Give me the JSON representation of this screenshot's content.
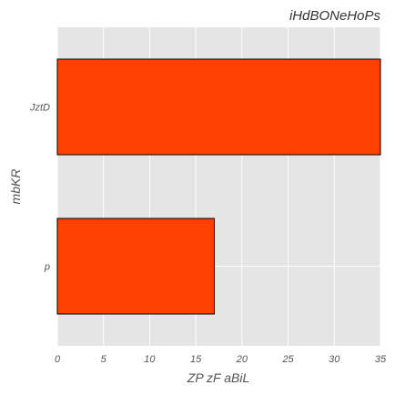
{
  "chart_data": {
    "type": "bar",
    "orientation": "horizontal",
    "title": "iHdBONeHoPs",
    "xlabel": "ZP  zF aBiL",
    "ylabel": "mbKR",
    "categories": [
      "p",
      "JztD"
    ],
    "values": [
      17,
      35
    ],
    "xlim": [
      0,
      35
    ],
    "xticks": [
      0,
      5,
      10,
      15,
      20,
      25,
      30,
      35
    ],
    "grid": true,
    "bar_color": "#ff4000",
    "bar_edge_color": "#000000",
    "background_color": "#e5e5e5",
    "grid_color": "#ffffff"
  }
}
